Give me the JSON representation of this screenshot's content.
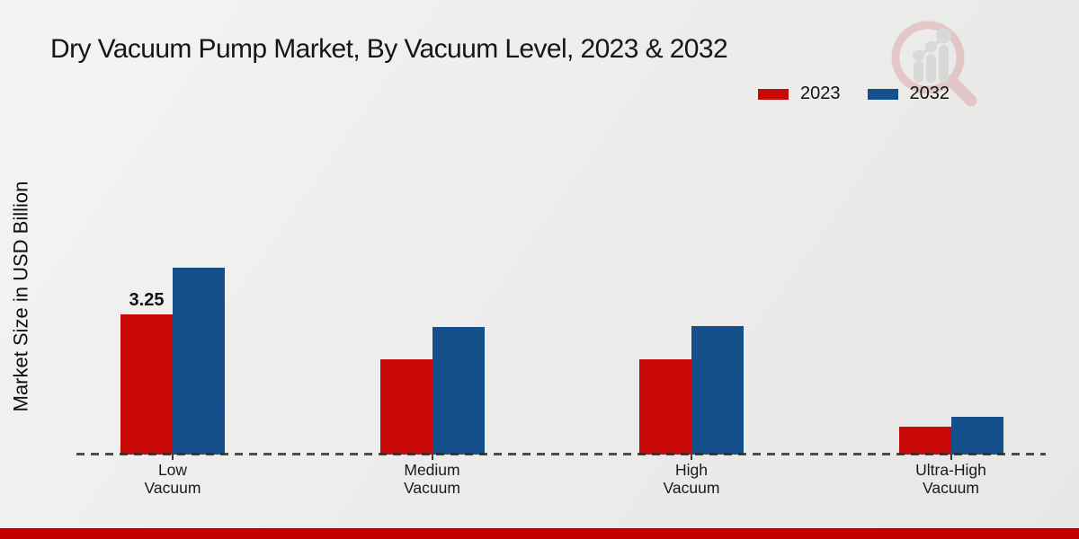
{
  "title": "Dry Vacuum Pump Market, By Vacuum Level, 2023 & 2032",
  "ylabel": "Market Size in USD Billion",
  "legend": [
    {
      "label": "2023",
      "color": "#C90808"
    },
    {
      "label": "2032",
      "color": "#15508C"
    }
  ],
  "watermark": {
    "icon": "magnifier-bar-chart-logo"
  },
  "footer": {
    "bar_color": "#C30101"
  },
  "chart_data": {
    "type": "bar",
    "categories": [
      "Low\nVacuum",
      "Medium\nVacuum",
      "High\nVacuum",
      "Ultra-High\nVacuum"
    ],
    "series": [
      {
        "name": "2023",
        "color": "#C90808",
        "values": [
          3.25,
          2.2,
          2.2,
          0.65
        ]
      },
      {
        "name": "2032",
        "color": "#15508C",
        "values": [
          4.33,
          2.95,
          2.97,
          0.88
        ]
      }
    ],
    "title": "Dry Vacuum Pump Market, By Vacuum Level, 2023 & 2032",
    "xlabel": "",
    "ylabel": "Market Size in USD Billion",
    "ylim": [
      0,
      4.6
    ],
    "grid": false,
    "baseline_style": "dashed",
    "legend_position": "top-right",
    "data_labels": [
      {
        "series": "2023",
        "category_index": 0,
        "text": "3.25"
      }
    ]
  }
}
